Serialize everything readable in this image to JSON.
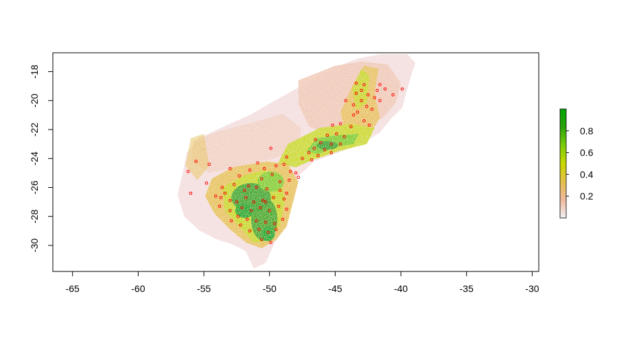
{
  "map": {
    "plot_type": "raster map with occurrence points",
    "x_axis": {
      "range": [
        -66.5,
        -29.5
      ],
      "ticks": [
        -65,
        -60,
        -55,
        -50,
        -45,
        -40,
        -35,
        -30
      ],
      "tick_labels": [
        "-65",
        "-60",
        "-55",
        "-50",
        "-45",
        "-40",
        "-35",
        "-30"
      ]
    },
    "y_axis": {
      "range": [
        -31.8,
        -16.7
      ],
      "ticks": [
        -18,
        -20,
        -22,
        -24,
        -26,
        -28,
        -30
      ],
      "tick_labels": [
        "-18",
        "-20",
        "-22",
        "-24",
        "-26",
        "-28",
        "-30"
      ]
    },
    "legend": {
      "placement": "right",
      "range": [
        0,
        1
      ],
      "ticks": [
        0.2,
        0.4,
        0.6,
        0.8
      ],
      "tick_labels": [
        "0.2",
        "0.4",
        "0.6",
        "0.8"
      ],
      "colors": [
        "#f2f2f2",
        "#eeb99f",
        "#e6c04a",
        "#c9d800",
        "#7ccc0a",
        "#2aa307",
        "#00a600"
      ]
    },
    "occurrence_point_color": "#ff0000",
    "occurrence_points": [
      [
        -43.4,
        -18.8
      ],
      [
        -42.8,
        -18.9
      ],
      [
        -41.6,
        -18.9
      ],
      [
        -41.8,
        -19.3
      ],
      [
        -43.0,
        -19.3
      ],
      [
        -43.4,
        -19.5
      ],
      [
        -42.5,
        -19.6
      ],
      [
        -41.2,
        -19.2
      ],
      [
        -40.6,
        -19.6
      ],
      [
        -39.9,
        -19.2
      ],
      [
        -42.0,
        -19.8
      ],
      [
        -43.0,
        -20.0
      ],
      [
        -43.6,
        -20.3
      ],
      [
        -42.6,
        -20.4
      ],
      [
        -43.3,
        -20.8
      ],
      [
        -44.2,
        -20.0
      ],
      [
        -41.6,
        -20.0
      ],
      [
        -42.2,
        -20.6
      ],
      [
        -43.6,
        -21.0
      ],
      [
        -42.8,
        -21.4
      ],
      [
        -45.2,
        -21.7
      ],
      [
        -44.6,
        -21.6
      ],
      [
        -43.8,
        -21.8
      ],
      [
        -45.6,
        -22.4
      ],
      [
        -44.9,
        -22.3
      ],
      [
        -44.3,
        -22.5
      ],
      [
        -42.4,
        -21.7
      ],
      [
        -46.5,
        -22.7
      ],
      [
        -46.1,
        -22.9
      ],
      [
        -45.3,
        -23.0
      ],
      [
        -44.6,
        -23.0
      ],
      [
        -46.6,
        -23.3
      ],
      [
        -45.8,
        -23.4
      ],
      [
        -45.3,
        -23.6
      ],
      [
        -47.0,
        -23.6
      ],
      [
        -46.3,
        -23.8
      ],
      [
        -49.9,
        -23.3
      ],
      [
        -48.7,
        -23.9
      ],
      [
        -47.5,
        -24.0
      ],
      [
        -50.9,
        -24.3
      ],
      [
        -51.5,
        -24.8
      ],
      [
        -50.4,
        -24.7
      ],
      [
        -49.5,
        -24.5
      ],
      [
        -48.9,
        -24.4
      ],
      [
        -48.4,
        -24.9
      ],
      [
        -49.8,
        -25.1
      ],
      [
        -50.6,
        -25.4
      ],
      [
        -48.0,
        -25.0
      ],
      [
        -49.2,
        -25.6
      ],
      [
        -48.5,
        -25.5
      ],
      [
        -55.6,
        -24.2
      ],
      [
        -54.6,
        -24.4
      ],
      [
        -56.2,
        -24.9
      ],
      [
        -54.8,
        -25.7
      ],
      [
        -53.0,
        -24.7
      ],
      [
        -52.3,
        -25.2
      ],
      [
        -51.6,
        -25.9
      ],
      [
        -52.7,
        -25.8
      ],
      [
        -53.6,
        -26.0
      ],
      [
        -51.0,
        -26.0
      ],
      [
        -50.2,
        -26.1
      ],
      [
        -49.2,
        -26.2
      ],
      [
        -48.7,
        -26.4
      ],
      [
        -53.4,
        -26.4
      ],
      [
        -54.1,
        -26.6
      ],
      [
        -53.0,
        -26.9
      ],
      [
        -52.5,
        -27.0
      ],
      [
        -51.8,
        -26.7
      ],
      [
        -51.2,
        -27.0
      ],
      [
        -50.5,
        -26.9
      ],
      [
        -49.7,
        -26.7
      ],
      [
        -48.9,
        -26.8
      ],
      [
        -56.0,
        -26.4
      ],
      [
        -53.7,
        -26.7
      ],
      [
        -52.1,
        -27.4
      ],
      [
        -51.4,
        -27.6
      ],
      [
        -50.7,
        -27.4
      ],
      [
        -50.0,
        -27.6
      ],
      [
        -49.3,
        -27.3
      ],
      [
        -48.7,
        -27.5
      ],
      [
        -53.8,
        -27.3
      ],
      [
        -53.0,
        -27.6
      ],
      [
        -52.4,
        -28.0
      ],
      [
        -51.7,
        -28.2
      ],
      [
        -51.0,
        -28.3
      ],
      [
        -50.3,
        -28.4
      ],
      [
        -49.6,
        -28.5
      ],
      [
        -49.0,
        -28.2
      ],
      [
        -52.9,
        -28.3
      ],
      [
        -50.8,
        -28.9
      ],
      [
        -50.1,
        -29.1
      ],
      [
        -49.5,
        -28.9
      ],
      [
        -51.5,
        -29.0
      ],
      [
        -50.6,
        -29.6
      ],
      [
        -49.9,
        -29.8
      ],
      [
        -52.2,
        -28.6
      ],
      [
        -50.3,
        -27.0
      ],
      [
        -51.9,
        -26.2
      ],
      [
        -47.8,
        -25.3
      ],
      [
        -46.8,
        -24.1
      ]
    ]
  }
}
